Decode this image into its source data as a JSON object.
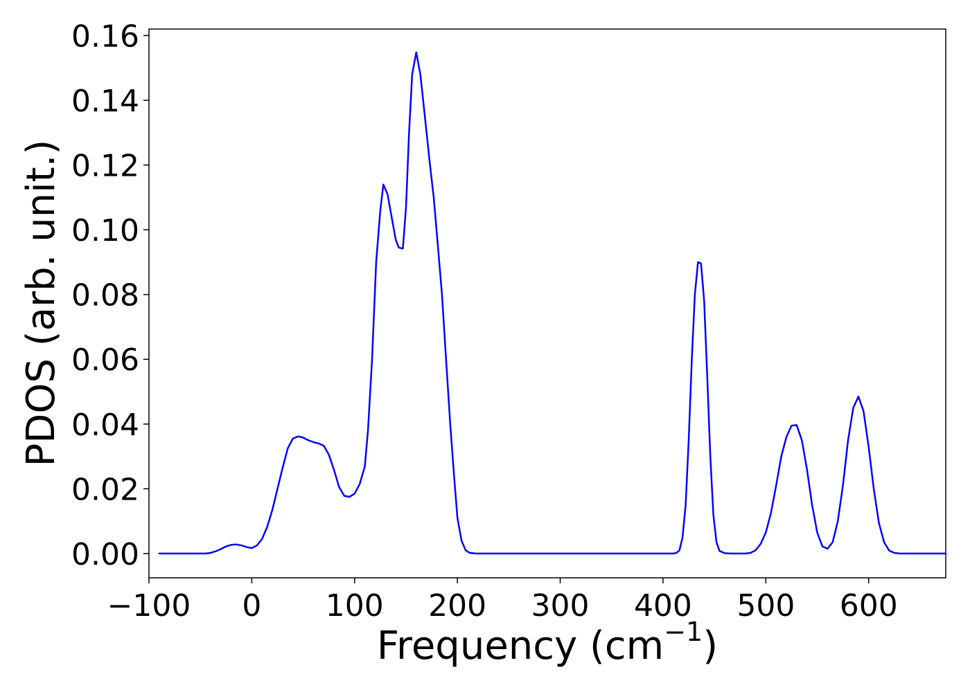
{
  "chart_data": {
    "type": "line",
    "title": "",
    "xlabel": "Frequency (cm",
    "xlabel_superscript": "−1",
    "xlabel_close": ")",
    "ylabel": "PDOS (arb. unit.)",
    "xlim": [
      -100,
      675
    ],
    "ylim": [
      -0.0075,
      0.162
    ],
    "xticks": [
      -100,
      0,
      100,
      200,
      300,
      400,
      500,
      600
    ],
    "xtick_labels": [
      "−100",
      "0",
      "100",
      "200",
      "300",
      "400",
      "500",
      "600"
    ],
    "yticks": [
      0.0,
      0.02,
      0.04,
      0.06,
      0.08,
      0.1,
      0.12,
      0.14,
      0.16
    ],
    "ytick_labels": [
      "0.00",
      "0.02",
      "0.04",
      "0.06",
      "0.08",
      "0.10",
      "0.12",
      "0.14",
      "0.16"
    ],
    "grid": false,
    "series": [
      {
        "color": "#0000ff",
        "points": [
          [
            -90,
            0.0
          ],
          [
            -45,
            0.0
          ],
          [
            -40,
            0.0002
          ],
          [
            -35,
            0.0007
          ],
          [
            -30,
            0.0014
          ],
          [
            -25,
            0.0022
          ],
          [
            -20,
            0.0027
          ],
          [
            -15,
            0.0028
          ],
          [
            -10,
            0.0025
          ],
          [
            -5,
            0.002
          ],
          [
            0,
            0.0017
          ],
          [
            5,
            0.0025
          ],
          [
            10,
            0.0045
          ],
          [
            15,
            0.0082
          ],
          [
            20,
            0.0135
          ],
          [
            25,
            0.02
          ],
          [
            30,
            0.0265
          ],
          [
            35,
            0.0325
          ],
          [
            40,
            0.0355
          ],
          [
            45,
            0.0362
          ],
          [
            50,
            0.0358
          ],
          [
            55,
            0.035
          ],
          [
            60,
            0.0344
          ],
          [
            65,
            0.034
          ],
          [
            70,
            0.0333
          ],
          [
            75,
            0.0305
          ],
          [
            80,
            0.0258
          ],
          [
            85,
            0.0205
          ],
          [
            90,
            0.0178
          ],
          [
            95,
            0.0175
          ],
          [
            100,
            0.0185
          ],
          [
            105,
            0.0215
          ],
          [
            110,
            0.027
          ],
          [
            113,
            0.038
          ],
          [
            117,
            0.06
          ],
          [
            121,
            0.09
          ],
          [
            125,
            0.106
          ],
          [
            128,
            0.114
          ],
          [
            132,
            0.111
          ],
          [
            136,
            0.104
          ],
          [
            140,
            0.097
          ],
          [
            143,
            0.0945
          ],
          [
            147,
            0.0942
          ],
          [
            150,
            0.107
          ],
          [
            153,
            0.13
          ],
          [
            156,
            0.148
          ],
          [
            160,
            0.1548
          ],
          [
            164,
            0.148
          ],
          [
            168,
            0.136
          ],
          [
            173,
            0.121
          ],
          [
            177,
            0.11
          ],
          [
            181,
            0.095
          ],
          [
            185,
            0.08
          ],
          [
            189,
            0.06
          ],
          [
            193,
            0.04
          ],
          [
            197,
            0.023
          ],
          [
            200,
            0.011
          ],
          [
            204,
            0.004
          ],
          [
            208,
            0.001
          ],
          [
            212,
            0.0002
          ],
          [
            218,
            0.0
          ],
          [
            410,
            0.0
          ],
          [
            413,
            0.0002
          ],
          [
            416,
            0.001
          ],
          [
            419,
            0.005
          ],
          [
            422,
            0.015
          ],
          [
            425,
            0.035
          ],
          [
            428,
            0.06
          ],
          [
            431,
            0.08
          ],
          [
            434,
            0.09
          ],
          [
            437,
            0.0896
          ],
          [
            440,
            0.078
          ],
          [
            443,
            0.055
          ],
          [
            446,
            0.03
          ],
          [
            449,
            0.012
          ],
          [
            452,
            0.0035
          ],
          [
            455,
            0.0008
          ],
          [
            460,
            0.0001
          ],
          [
            465,
            0.0
          ],
          [
            480,
            0.0
          ],
          [
            485,
            0.0002
          ],
          [
            490,
            0.001
          ],
          [
            495,
            0.003
          ],
          [
            500,
            0.0065
          ],
          [
            505,
            0.0125
          ],
          [
            510,
            0.021
          ],
          [
            515,
            0.03
          ],
          [
            520,
            0.036
          ],
          [
            525,
            0.0395
          ],
          [
            530,
            0.0397
          ],
          [
            535,
            0.035
          ],
          [
            540,
            0.026
          ],
          [
            545,
            0.015
          ],
          [
            550,
            0.0065
          ],
          [
            555,
            0.0022
          ],
          [
            560,
            0.0015
          ],
          [
            565,
            0.0035
          ],
          [
            570,
            0.01
          ],
          [
            575,
            0.021
          ],
          [
            580,
            0.035
          ],
          [
            585,
            0.045
          ],
          [
            590,
            0.0485
          ],
          [
            595,
            0.044
          ],
          [
            600,
            0.033
          ],
          [
            605,
            0.02
          ],
          [
            610,
            0.0095
          ],
          [
            615,
            0.0035
          ],
          [
            620,
            0.0009
          ],
          [
            625,
            0.0002
          ],
          [
            630,
            0.0
          ],
          [
            675,
            0.0
          ]
        ]
      }
    ]
  }
}
